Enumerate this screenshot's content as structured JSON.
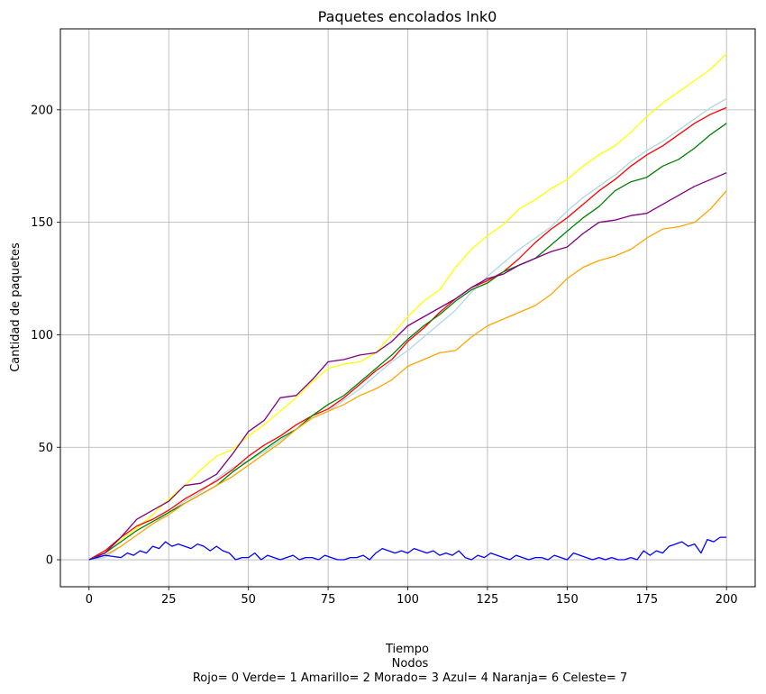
{
  "chart_data": {
    "type": "line",
    "title": "Paquetes encolados lnk0",
    "xlabel_lines": [
      "Tiempo",
      "Nodos",
      "Rojo= 0  Verde= 1  Amarillo= 2  Morado= 3 Azul= 4 Naranja= 6 Celeste= 7"
    ],
    "ylabel": "Cantidad de paquetes",
    "xlim": [
      -9,
      209
    ],
    "ylim": [
      -12,
      236
    ],
    "xticks": [
      0,
      25,
      50,
      75,
      100,
      125,
      150,
      175,
      200
    ],
    "yticks": [
      0,
      50,
      100,
      150,
      200
    ],
    "grid": true,
    "series": [
      {
        "color": "#ffff00",
        "x": [
          0,
          5,
          10,
          15,
          20,
          25,
          30,
          35,
          40,
          45,
          50,
          55,
          60,
          65,
          70,
          75,
          80,
          85,
          90,
          95,
          100,
          105,
          110,
          115,
          120,
          125,
          130,
          135,
          140,
          145,
          150,
          155,
          160,
          165,
          170,
          175,
          180,
          185,
          190,
          195,
          200
        ],
        "y": [
          0,
          4,
          9,
          14,
          20,
          27,
          33,
          40,
          46,
          49,
          55,
          60,
          66,
          72,
          79,
          85,
          87,
          88,
          92,
          100,
          108,
          115,
          120,
          130,
          138,
          144,
          149,
          156,
          160,
          165,
          169,
          175,
          180,
          184,
          190,
          197,
          203,
          208,
          213,
          218,
          225
        ]
      },
      {
        "color": "#add8e6",
        "x": [
          0,
          5,
          10,
          15,
          20,
          25,
          30,
          35,
          40,
          45,
          50,
          55,
          60,
          65,
          70,
          75,
          80,
          85,
          90,
          95,
          100,
          105,
          110,
          115,
          120,
          125,
          130,
          135,
          140,
          145,
          150,
          155,
          160,
          165,
          170,
          175,
          180,
          185,
          190,
          195,
          200
        ],
        "y": [
          0,
          1,
          6,
          11,
          16,
          21,
          26,
          30,
          36,
          41,
          44,
          48,
          53,
          58,
          63,
          66,
          71,
          76,
          82,
          88,
          93,
          99,
          105,
          111,
          119,
          126,
          132,
          138,
          143,
          148,
          155,
          161,
          166,
          171,
          177,
          182,
          186,
          191,
          196,
          201,
          205
        ]
      },
      {
        "color": "#ff0000",
        "x": [
          0,
          5,
          10,
          15,
          20,
          25,
          30,
          35,
          40,
          45,
          50,
          55,
          60,
          65,
          70,
          75,
          80,
          85,
          90,
          95,
          100,
          105,
          110,
          115,
          120,
          125,
          130,
          135,
          140,
          145,
          150,
          155,
          160,
          165,
          170,
          175,
          180,
          185,
          190,
          195,
          200
        ],
        "y": [
          0,
          4,
          10,
          15,
          18,
          22,
          27,
          31,
          35,
          40,
          46,
          51,
          55,
          60,
          64,
          67,
          72,
          78,
          84,
          89,
          97,
          103,
          110,
          116,
          121,
          124,
          128,
          134,
          141,
          147,
          152,
          158,
          164,
          169,
          175,
          180,
          184,
          189,
          194,
          198,
          201
        ]
      },
      {
        "color": "#008000",
        "x": [
          0,
          5,
          10,
          15,
          20,
          25,
          30,
          35,
          40,
          45,
          50,
          55,
          60,
          65,
          70,
          75,
          80,
          85,
          90,
          95,
          100,
          105,
          110,
          115,
          120,
          125,
          130,
          135,
          140,
          145,
          150,
          155,
          160,
          165,
          170,
          175,
          180,
          185,
          190,
          195,
          200
        ],
        "y": [
          0,
          3,
          8,
          13,
          17,
          21,
          25,
          29,
          33,
          39,
          44,
          49,
          54,
          58,
          64,
          69,
          73,
          79,
          85,
          91,
          98,
          104,
          109,
          115,
          120,
          123,
          128,
          131,
          134,
          140,
          146,
          152,
          157,
          164,
          168,
          170,
          175,
          178,
          183,
          189,
          194
        ]
      },
      {
        "color": "#800080",
        "x": [
          0,
          5,
          10,
          15,
          20,
          25,
          30,
          35,
          40,
          45,
          50,
          55,
          60,
          65,
          70,
          75,
          80,
          85,
          90,
          95,
          100,
          105,
          110,
          115,
          120,
          125,
          130,
          135,
          140,
          145,
          150,
          155,
          160,
          165,
          170,
          175,
          180,
          185,
          190,
          195,
          200
        ],
        "y": [
          0,
          3,
          10,
          18,
          22,
          26,
          33,
          34,
          38,
          47,
          57,
          62,
          72,
          73,
          80,
          88,
          89,
          91,
          92,
          97,
          104,
          108,
          112,
          116,
          121,
          125,
          127,
          131,
          134,
          137,
          139,
          145,
          150,
          151,
          153,
          154,
          158,
          162,
          166,
          169,
          172
        ]
      },
      {
        "color": "#ffa500",
        "x": [
          0,
          5,
          10,
          15,
          20,
          25,
          30,
          35,
          40,
          45,
          50,
          55,
          60,
          65,
          70,
          75,
          80,
          85,
          90,
          95,
          100,
          105,
          110,
          115,
          120,
          125,
          130,
          135,
          140,
          145,
          150,
          155,
          160,
          165,
          170,
          175,
          180,
          185,
          190,
          195,
          200
        ],
        "y": [
          0,
          2,
          6,
          11,
          16,
          20,
          25,
          29,
          33,
          37,
          42,
          47,
          52,
          58,
          63,
          66,
          69,
          73,
          76,
          80,
          86,
          89,
          92,
          93,
          99,
          104,
          107,
          110,
          113,
          118,
          125,
          130,
          133,
          135,
          138,
          143,
          147,
          148,
          150,
          156,
          164
        ]
      },
      {
        "color": "#0000ff",
        "x": [
          0,
          5,
          10,
          12,
          14,
          16,
          18,
          20,
          22,
          24,
          26,
          28,
          30,
          32,
          34,
          36,
          38,
          40,
          42,
          44,
          46,
          48,
          50,
          52,
          54,
          56,
          58,
          60,
          62,
          64,
          66,
          68,
          70,
          72,
          74,
          76,
          78,
          80,
          82,
          84,
          86,
          88,
          90,
          92,
          94,
          96,
          98,
          100,
          102,
          104,
          106,
          108,
          110,
          112,
          114,
          116,
          118,
          120,
          122,
          124,
          126,
          128,
          130,
          132,
          134,
          136,
          138,
          140,
          142,
          144,
          146,
          148,
          150,
          152,
          154,
          156,
          158,
          160,
          162,
          164,
          166,
          168,
          170,
          172,
          174,
          176,
          178,
          180,
          182,
          184,
          186,
          188,
          190,
          192,
          194,
          196,
          198,
          200
        ],
        "y": [
          0,
          2,
          1,
          3,
          2,
          4,
          3,
          6,
          5,
          8,
          6,
          7,
          6,
          5,
          7,
          6,
          4,
          6,
          4,
          3,
          0,
          1,
          1,
          3,
          0,
          2,
          1,
          0,
          1,
          2,
          0,
          1,
          1,
          0,
          2,
          1,
          0,
          0,
          1,
          1,
          2,
          0,
          3,
          5,
          4,
          3,
          4,
          3,
          5,
          4,
          3,
          4,
          2,
          3,
          2,
          4,
          1,
          0,
          2,
          1,
          3,
          2,
          1,
          0,
          2,
          1,
          0,
          1,
          1,
          0,
          2,
          1,
          0,
          3,
          2,
          1,
          0,
          1,
          0,
          1,
          0,
          0,
          1,
          0,
          4,
          2,
          4,
          3,
          6,
          7,
          8,
          6,
          7,
          3,
          9,
          8,
          10,
          10
        ]
      }
    ]
  }
}
